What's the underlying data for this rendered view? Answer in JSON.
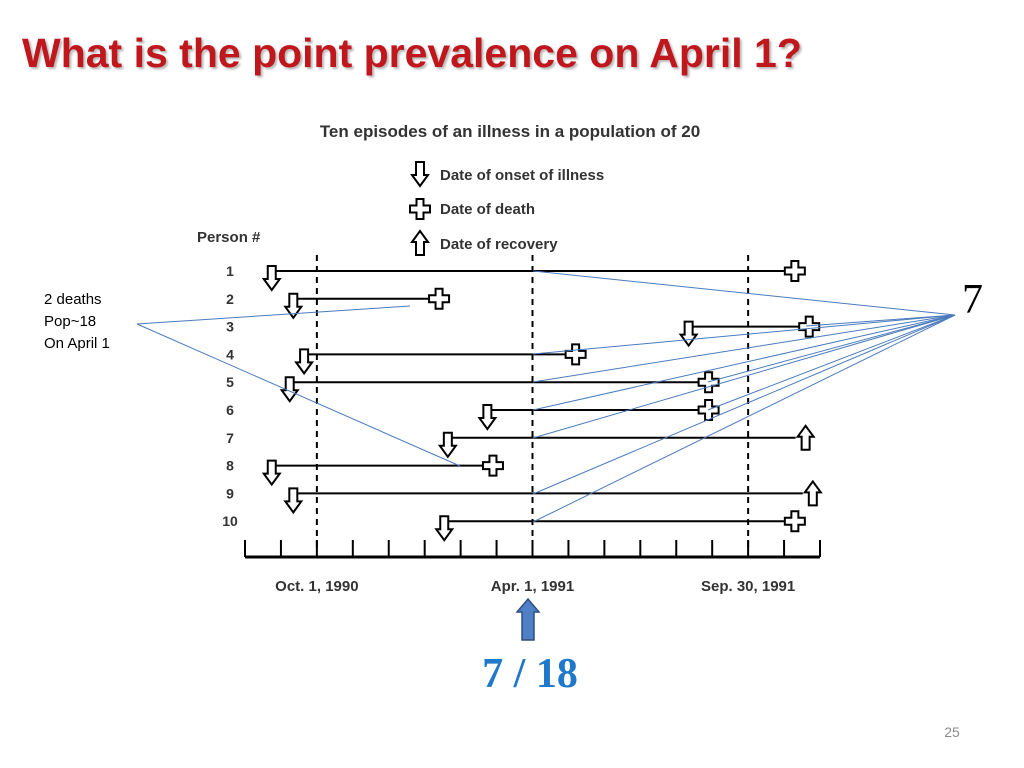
{
  "slide": {
    "title": "What is the point prevalence on April 1?",
    "annotation_lines": [
      "2 deaths",
      "Pop~18",
      "On April 1"
    ],
    "count_label": "7",
    "result": "7 / 18",
    "slide_number": "25"
  },
  "diagram": {
    "caption": "Ten episodes of an illness in a population of 20",
    "legend": [
      {
        "symbol": "down-arrow",
        "label": "Date of onset of illness"
      },
      {
        "symbol": "cross",
        "label": "Date of death"
      },
      {
        "symbol": "up-arrow",
        "label": "Date of recovery"
      }
    ],
    "row_header": "Person #",
    "axis": {
      "labels": [
        "Oct. 1, 1990",
        "Apr. 1, 1991",
        "Sep. 30, 1991"
      ],
      "start": "1990-08",
      "end": "1991-12",
      "units": "months"
    },
    "persons": [
      {
        "id": "1",
        "onset": 0.8,
        "end": 15.3,
        "outcome": "death"
      },
      {
        "id": "2",
        "onset": 1.4,
        "end": 5.4,
        "outcome": "death"
      },
      {
        "id": "3",
        "onset": 12.4,
        "end": 15.7,
        "outcome": "death"
      },
      {
        "id": "4",
        "onset": 1.7,
        "end": 9.2,
        "outcome": "death"
      },
      {
        "id": "5",
        "onset": 1.3,
        "end": 12.9,
        "outcome": "death"
      },
      {
        "id": "6",
        "onset": 6.8,
        "end": 12.9,
        "outcome": "death"
      },
      {
        "id": "7",
        "onset": 5.7,
        "end": 15.6,
        "outcome": "recovery"
      },
      {
        "id": "8",
        "onset": 0.8,
        "end": 6.9,
        "outcome": "death"
      },
      {
        "id": "9",
        "onset": 1.4,
        "end": 15.8,
        "outcome": "recovery"
      },
      {
        "id": "10",
        "onset": 5.6,
        "end": 15.3,
        "outcome": "death"
      }
    ],
    "colors": {
      "annotation_line": "#4a7bbd",
      "arrow_fill": "#4f7fc4",
      "title": "#c0171d",
      "result": "#1f78c9"
    }
  }
}
